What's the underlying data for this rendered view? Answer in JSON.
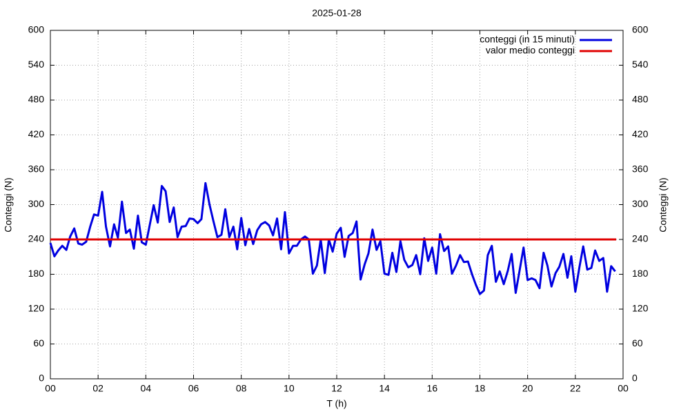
{
  "chart_data": {
    "type": "line",
    "title": "2025-01-28",
    "x_label": "T (h)",
    "y_label": "Conteggi (N)",
    "y2_label": "Conteggi (N)",
    "xlim": [
      0,
      24
    ],
    "ylim": [
      0,
      600
    ],
    "y2lim": [
      0,
      600
    ],
    "xticks": [
      {
        "value": 0,
        "label": "00"
      },
      {
        "value": 2,
        "label": "02"
      },
      {
        "value": 4,
        "label": "04"
      },
      {
        "value": 6,
        "label": "06"
      },
      {
        "value": 8,
        "label": "08"
      },
      10,
      12,
      14,
      16,
      18,
      20,
      22,
      {
        "value": 24,
        "label": "00"
      }
    ],
    "yticks": [
      0,
      60,
      120,
      180,
      240,
      300,
      360,
      420,
      480,
      540,
      600
    ],
    "y2ticks": [
      0,
      60,
      120,
      180,
      240,
      300,
      360,
      420,
      480,
      540,
      600
    ],
    "grid": true,
    "legend": "top-right",
    "x": [
      0,
      0.17,
      0.33,
      0.5,
      0.67,
      0.83,
      1,
      1.17,
      1.33,
      1.5,
      1.67,
      1.83,
      2,
      2.17,
      2.33,
      2.5,
      2.67,
      2.83,
      3,
      3.17,
      3.33,
      3.5,
      3.67,
      3.83,
      4,
      4.17,
      4.33,
      4.5,
      4.67,
      4.83,
      5,
      5.17,
      5.33,
      5.5,
      5.67,
      5.83,
      6,
      6.17,
      6.33,
      6.5,
      6.67,
      6.83,
      7,
      7.17,
      7.33,
      7.5,
      7.67,
      7.83,
      8,
      8.17,
      8.33,
      8.5,
      8.67,
      8.83,
      9,
      9.17,
      9.33,
      9.5,
      9.67,
      9.83,
      10,
      10.17,
      10.33,
      10.5,
      10.67,
      10.83,
      11,
      11.17,
      11.33,
      11.5,
      11.67,
      11.83,
      12,
      12.17,
      12.33,
      12.5,
      12.67,
      12.83,
      13,
      13.17,
      13.33,
      13.5,
      13.67,
      13.83,
      14,
      14.17,
      14.33,
      14.5,
      14.67,
      14.83,
      15,
      15.17,
      15.33,
      15.5,
      15.67,
      15.83,
      16,
      16.17,
      16.33,
      16.5,
      16.67,
      16.83,
      17,
      17.17,
      17.33,
      17.5,
      17.67,
      17.83,
      18,
      18.17,
      18.33,
      18.5,
      18.67,
      18.83,
      19,
      19.17,
      19.33,
      19.5,
      19.67,
      19.83,
      20,
      20.17,
      20.33,
      20.5,
      20.67,
      20.83,
      21,
      21.17,
      21.33,
      21.5,
      21.67,
      21.83,
      22,
      22.17,
      22.33,
      22.5,
      22.67,
      22.83,
      23,
      23.17,
      23.33,
      23.5,
      23.67
    ],
    "series": [
      {
        "name": "conteggi (in 15 minuti)",
        "color": "#0000e0",
        "values": [
          234,
          211,
          221,
          229,
          222,
          245,
          259,
          233,
          231,
          236,
          262,
          283,
          281,
          322,
          262,
          228,
          266,
          243,
          305,
          251,
          257,
          224,
          281,
          235,
          231,
          266,
          299,
          269,
          332,
          323,
          270,
          295,
          244,
          262,
          263,
          276,
          275,
          268,
          275,
          337,
          300,
          272,
          244,
          248,
          292,
          244,
          262,
          223,
          277,
          230,
          258,
          232,
          256,
          266,
          270,
          264,
          247,
          276,
          223,
          287,
          216,
          229,
          229,
          240,
          245,
          240,
          181,
          195,
          240,
          182,
          240,
          219,
          250,
          260,
          210,
          246,
          251,
          271,
          171,
          197,
          216,
          257,
          222,
          237,
          181,
          179,
          217,
          184,
          237,
          205,
          192,
          196,
          213,
          180,
          242,
          203,
          226,
          181,
          249,
          220,
          228,
          181,
          195,
          213,
          201,
          202,
          180,
          162,
          146,
          152,
          213,
          229,
          167,
          185,
          163,
          186,
          215,
          148,
          188,
          226,
          170,
          173,
          170,
          156,
          217,
          195,
          159,
          182,
          193,
          215,
          174,
          211,
          150,
          192,
          228,
          188,
          191,
          221,
          203,
          208,
          150,
          194,
          185
        ]
      }
    ],
    "mean": {
      "name": "valor medio conteggi",
      "color": "#e00000",
      "value": 240
    }
  }
}
